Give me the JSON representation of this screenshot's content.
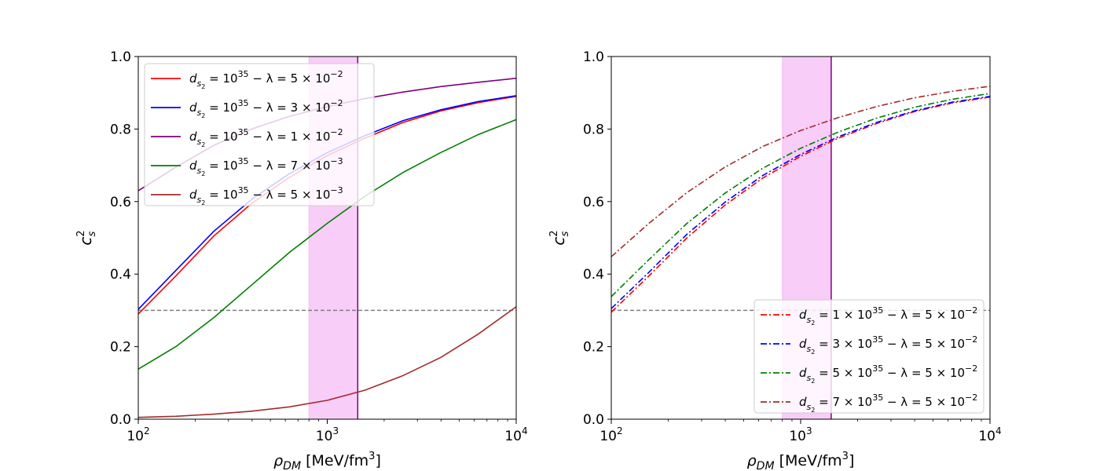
{
  "figure": {
    "panels": [
      {
        "title": "",
        "xlabel": {
          "sym": "ρ",
          "sub": "DM",
          "unit": " [MeV/fm",
          "sup": "3",
          "close": "]"
        },
        "ylabel": {
          "sym": "c",
          "sup": "2",
          "sub": "s"
        },
        "xticks": [
          {
            "base": "10",
            "exp": "2"
          },
          {
            "base": "10",
            "exp": "3"
          },
          {
            "base": "10",
            "exp": "4"
          }
        ],
        "yticks": [
          "0.0",
          "0.2",
          "0.4",
          "0.6",
          "0.8",
          "1.0"
        ]
      },
      {
        "title": "",
        "xlabel": {
          "sym": "ρ",
          "sub": "DM",
          "unit": " [MeV/fm",
          "sup": "3",
          "close": "]"
        },
        "ylabel": {
          "sym": "c",
          "sup": "2",
          "sub": "s"
        },
        "xticks": [
          {
            "base": "10",
            "exp": "2"
          },
          {
            "base": "10",
            "exp": "3"
          },
          {
            "base": "10",
            "exp": "4"
          }
        ],
        "yticks": [
          "0.0",
          "0.2",
          "0.4",
          "0.6",
          "0.8",
          "1.0"
        ]
      }
    ]
  },
  "chart_data": [
    {
      "type": "line",
      "xscale": "log",
      "xlim": [
        100,
        10000
      ],
      "ylim": [
        0,
        1.0
      ],
      "xlabel": "ρ_DM [MeV/fm^3]",
      "ylabel": "c_s^2",
      "band": {
        "x0": 800,
        "x1": 1450,
        "color": "#ee82ee"
      },
      "vline": {
        "x": 1450,
        "color": "#800080"
      },
      "hline": {
        "y": 0.3,
        "color": "#808080",
        "style": "dashed"
      },
      "legend_position": "top-left",
      "x": [
        100,
        158,
        251,
        398,
        631,
        1000,
        1585,
        2512,
        3981,
        6310,
        10000
      ],
      "series": [
        {
          "name": "d_{s_2} = 10^{35} − λ = 5×10^{-2}",
          "legend": {
            "pre": "d",
            "sub": "s",
            "subsub": "2",
            "mid": " = 10",
            "sup": "35",
            "lam": "  −  λ = 5 × 10",
            "lsup": "−2"
          },
          "color": "#ff0000",
          "dash": "",
          "values": [
            0.29,
            0.395,
            0.505,
            0.595,
            0.667,
            0.727,
            0.775,
            0.818,
            0.85,
            0.873,
            0.89
          ]
        },
        {
          "name": "d_{s_2} = 10^{35} − λ = 3×10^{-2}",
          "legend": {
            "pre": "d",
            "sub": "s",
            "subsub": "2",
            "mid": " = 10",
            "sup": "35",
            "lam": "  −  λ = 3 × 10",
            "lsup": "−2"
          },
          "color": "#0000ff",
          "dash": "",
          "values": [
            0.303,
            0.41,
            0.518,
            0.606,
            0.677,
            0.735,
            0.782,
            0.823,
            0.853,
            0.876,
            0.892
          ]
        },
        {
          "name": "d_{s_2} = 10^{35} − λ = 1×10^{-2}",
          "legend": {
            "pre": "d",
            "sub": "s",
            "subsub": "2",
            "mid": " = 10",
            "sup": "35",
            "lam": "  −  λ = 1 × 10",
            "lsup": "−2"
          },
          "color": "#800080",
          "dash": "",
          "values": [
            0.63,
            0.695,
            0.755,
            0.8,
            0.835,
            0.862,
            0.884,
            0.902,
            0.917,
            0.929,
            0.94
          ]
        },
        {
          "name": "d_{s_2} = 10^{35} − λ = 7×10^{-3}",
          "legend": {
            "pre": "d",
            "sub": "s",
            "subsub": "2",
            "mid": " = 10",
            "sup": "35",
            "lam": "  −  λ = 7 × 10",
            "lsup": "−3"
          },
          "color": "#008000",
          "dash": "",
          "values": [
            0.138,
            0.2,
            0.28,
            0.37,
            0.46,
            0.54,
            0.615,
            0.68,
            0.735,
            0.785,
            0.826
          ]
        },
        {
          "name": "d_{s_2} = 10^{35} − λ = 5×10^{-3}",
          "legend": {
            "pre": "d",
            "sub": "s",
            "subsub": "2",
            "mid": " = 10",
            "sup": "35",
            "lam": "  −  λ = 5 × 10",
            "lsup": "−3"
          },
          "color": "#a52a2a",
          "dash": "",
          "values": [
            0.005,
            0.008,
            0.014,
            0.022,
            0.034,
            0.052,
            0.08,
            0.12,
            0.17,
            0.235,
            0.31
          ]
        }
      ]
    },
    {
      "type": "line",
      "xscale": "log",
      "xlim": [
        100,
        10000
      ],
      "ylim": [
        0,
        1.0
      ],
      "xlabel": "ρ_DM [MeV/fm^3]",
      "ylabel": "c_s^2",
      "band": {
        "x0": 800,
        "x1": 1450,
        "color": "#ee82ee"
      },
      "vline": {
        "x": 1450,
        "color": "#800080"
      },
      "hline": {
        "y": 0.3,
        "color": "#808080",
        "style": "dashed"
      },
      "legend_position": "bottom-right",
      "x": [
        100,
        158,
        251,
        398,
        631,
        1000,
        1585,
        2512,
        3981,
        6310,
        10000
      ],
      "series": [
        {
          "name": "d_{s_2} = 1×10^{35} − λ = 5×10^{-2}",
          "legend": {
            "pre": "d",
            "sub": "s",
            "subsub": "2",
            "mid": " = 1 × 10",
            "sup": "35",
            "lam": "  −  λ = 5 × 10",
            "lsup": "−2"
          },
          "color": "#ff0000",
          "dash": "8,3,2,3",
          "values": [
            0.295,
            0.395,
            0.5,
            0.59,
            0.665,
            0.725,
            0.775,
            0.815,
            0.848,
            0.872,
            0.888
          ]
        },
        {
          "name": "d_{s_2} = 3×10^{35} − λ = 5×10^{-2}",
          "legend": {
            "pre": "d",
            "sub": "s",
            "subsub": "2",
            "mid": " = 3 × 10",
            "sup": "35",
            "lam": "  −  λ = 5 × 10",
            "lsup": "−2"
          },
          "color": "#0000ff",
          "dash": "8,3,2,3",
          "values": [
            0.305,
            0.405,
            0.51,
            0.598,
            0.672,
            0.73,
            0.779,
            0.818,
            0.85,
            0.874,
            0.89
          ]
        },
        {
          "name": "d_{s_2} = 5×10^{35} − λ = 5×10^{-2}",
          "legend": {
            "pre": "d",
            "sub": "s",
            "subsub": "2",
            "mid": " = 5 × 10",
            "sup": "35",
            "lam": "  −  λ = 5 × 10",
            "lsup": "−2"
          },
          "color": "#008000",
          "dash": "8,3,2,3",
          "values": [
            0.338,
            0.44,
            0.54,
            0.623,
            0.692,
            0.747,
            0.792,
            0.83,
            0.86,
            0.882,
            0.898
          ]
        },
        {
          "name": "d_{s_2} = 7×10^{35} − λ = 5×10^{-2}",
          "legend": {
            "pre": "d",
            "sub": "s",
            "subsub": "2",
            "mid": " = 7 × 10",
            "sup": "35",
            "lam": "  −  λ = 5 × 10",
            "lsup": "−2"
          },
          "color": "#a52a2a",
          "dash": "8,3,2,3",
          "values": [
            0.448,
            0.54,
            0.625,
            0.695,
            0.752,
            0.796,
            0.832,
            0.862,
            0.886,
            0.904,
            0.918
          ]
        }
      ]
    }
  ]
}
